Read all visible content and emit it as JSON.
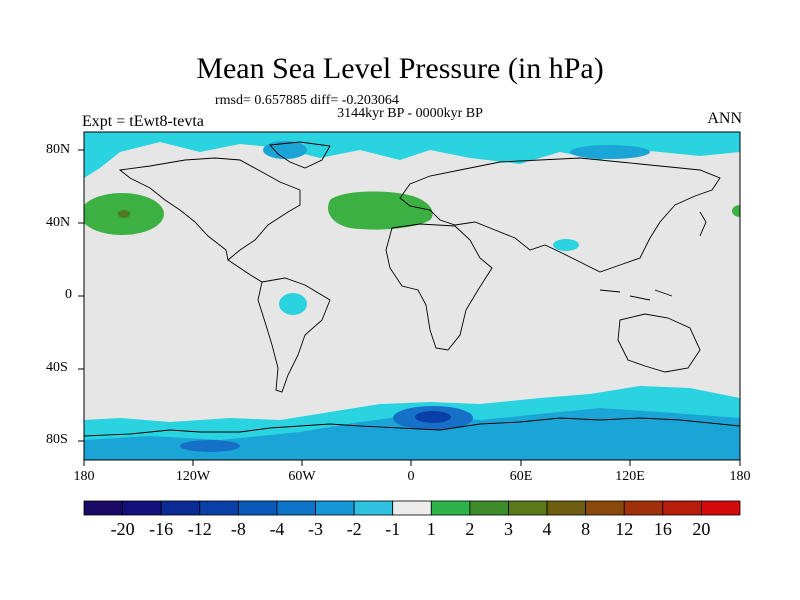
{
  "title": "Mean Sea Level Pressure (in hPa)",
  "stats": "rmsd= 0.657885 diff= -0.203064",
  "period": "3144kyr BP - 0000kyr BP",
  "experiment": "Expt = tEwt8-tevta",
  "season": "ANN",
  "lat_labels": [
    "80N",
    "40N",
    "0",
    "40S",
    "80S"
  ],
  "lon_labels": [
    "180",
    "120W",
    "60W",
    "0",
    "60E",
    "120E",
    "180"
  ],
  "colorbar": {
    "labels": [
      "-20",
      "-16",
      "-12",
      "-8",
      "-4",
      "-3",
      "-2",
      "-1",
      "1",
      "2",
      "3",
      "4",
      "8",
      "12",
      "16",
      "20"
    ],
    "colors": [
      "#1a0a66",
      "#12127a",
      "#0a2a96",
      "#0a3fa8",
      "#0a58b8",
      "#0c74c8",
      "#1596d6",
      "#2cc2df",
      "#ececec",
      "#2cb34a",
      "#3c8c2a",
      "#5a7a1a",
      "#705e10",
      "#8a4a0c",
      "#a0300a",
      "#b81c0a",
      "#d20a0a"
    ]
  },
  "map": {
    "background": "#e6e6e6",
    "positive_low": "#3cb043",
    "positive_mid": "#4f7a28",
    "negative_low": "#29d3e0",
    "negative_mid": "#1aa5d6",
    "negative_high": "#1670c8",
    "negative_max": "#0a3fa8"
  }
}
